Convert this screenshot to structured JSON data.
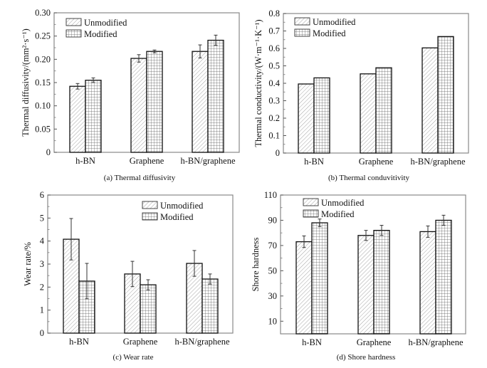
{
  "series_names": [
    "Unmodified",
    "Modified"
  ],
  "chart_data": [
    {
      "id": "a",
      "type": "bar",
      "caption": "(a) Thermal diffusivity",
      "xlabel": "",
      "ylabel": "Thermal diffusivity/(mm²·s⁻¹)",
      "categories": [
        "h-BN",
        "Graphene",
        "h-BN/graphene"
      ],
      "ylim": [
        0,
        0.3
      ],
      "yticks": [
        0,
        0.05,
        0.1,
        0.15,
        0.2,
        0.25,
        0.3
      ],
      "ytick_labels": [
        "0",
        "0.05",
        "0.10",
        "0.15",
        "0.20",
        "0.25",
        "0.30"
      ],
      "legend": "top-left",
      "series": [
        {
          "name": "Unmodified",
          "values": [
            0.142,
            0.202,
            0.217
          ],
          "errors": [
            0.006,
            0.008,
            0.014
          ]
        },
        {
          "name": "Modified",
          "values": [
            0.155,
            0.217,
            0.241
          ],
          "errors": [
            0.005,
            0.003,
            0.011
          ]
        }
      ]
    },
    {
      "id": "b",
      "type": "bar",
      "caption": "(b) Thermal conduvitivity",
      "xlabel": "",
      "ylabel": "Thermal conductivity/(W·m⁻¹·K⁻¹)",
      "categories": [
        "h-BN",
        "Graphene",
        "h-BN/graphene"
      ],
      "ylim": [
        0,
        0.8
      ],
      "yticks": [
        0,
        0.1,
        0.2,
        0.3,
        0.4,
        0.5,
        0.6,
        0.7,
        0.8
      ],
      "ytick_labels": [
        "0",
        "0.1",
        "0.2",
        "0.3",
        "0.4",
        "0.5",
        "0.6",
        "0.7",
        "0.8"
      ],
      "legend": "top-left",
      "series": [
        {
          "name": "Unmodified",
          "values": [
            0.396,
            0.454,
            0.603
          ],
          "errors": [
            0,
            0,
            0
          ]
        },
        {
          "name": "Modified",
          "values": [
            0.431,
            0.489,
            0.668
          ],
          "errors": [
            0,
            0,
            0
          ]
        }
      ]
    },
    {
      "id": "c",
      "type": "bar",
      "caption": "(c) Wear rate",
      "xlabel": "",
      "ylabel": "Wear rate/%",
      "categories": [
        "h-BN",
        "Graphene",
        "h-BN/graphene"
      ],
      "ylim": [
        0,
        6
      ],
      "yticks": [
        0,
        1,
        2,
        3,
        4,
        5,
        6
      ],
      "ytick_labels": [
        "0",
        "1",
        "2",
        "3",
        "4",
        "5",
        "6"
      ],
      "legend": "top-right",
      "series": [
        {
          "name": "Unmodified",
          "values": [
            4.08,
            2.57,
            3.03
          ],
          "errors": [
            0.9,
            0.55,
            0.56
          ]
        },
        {
          "name": "Modified",
          "values": [
            2.26,
            2.1,
            2.35
          ],
          "errors": [
            0.77,
            0.22,
            0.22
          ]
        }
      ]
    },
    {
      "id": "d",
      "type": "bar",
      "caption": "(d) Shore hardness",
      "xlabel": "",
      "ylabel": "Shore hardness",
      "categories": [
        "h-BN",
        "Graphene",
        "h-BN/graphene"
      ],
      "ylim": [
        0,
        110
      ],
      "yticks": [
        10,
        30,
        50,
        70,
        90,
        110
      ],
      "ytick_labels": [
        "10",
        "30",
        "50",
        "70",
        "90",
        "110"
      ],
      "legend": "top-left",
      "series": [
        {
          "name": "Unmodified",
          "values": [
            73,
            78,
            81
          ],
          "errors": [
            4.6,
            4,
            4.5
          ]
        },
        {
          "name": "Modified",
          "values": [
            88,
            82,
            90
          ],
          "errors": [
            3,
            4,
            4
          ]
        }
      ]
    }
  ]
}
